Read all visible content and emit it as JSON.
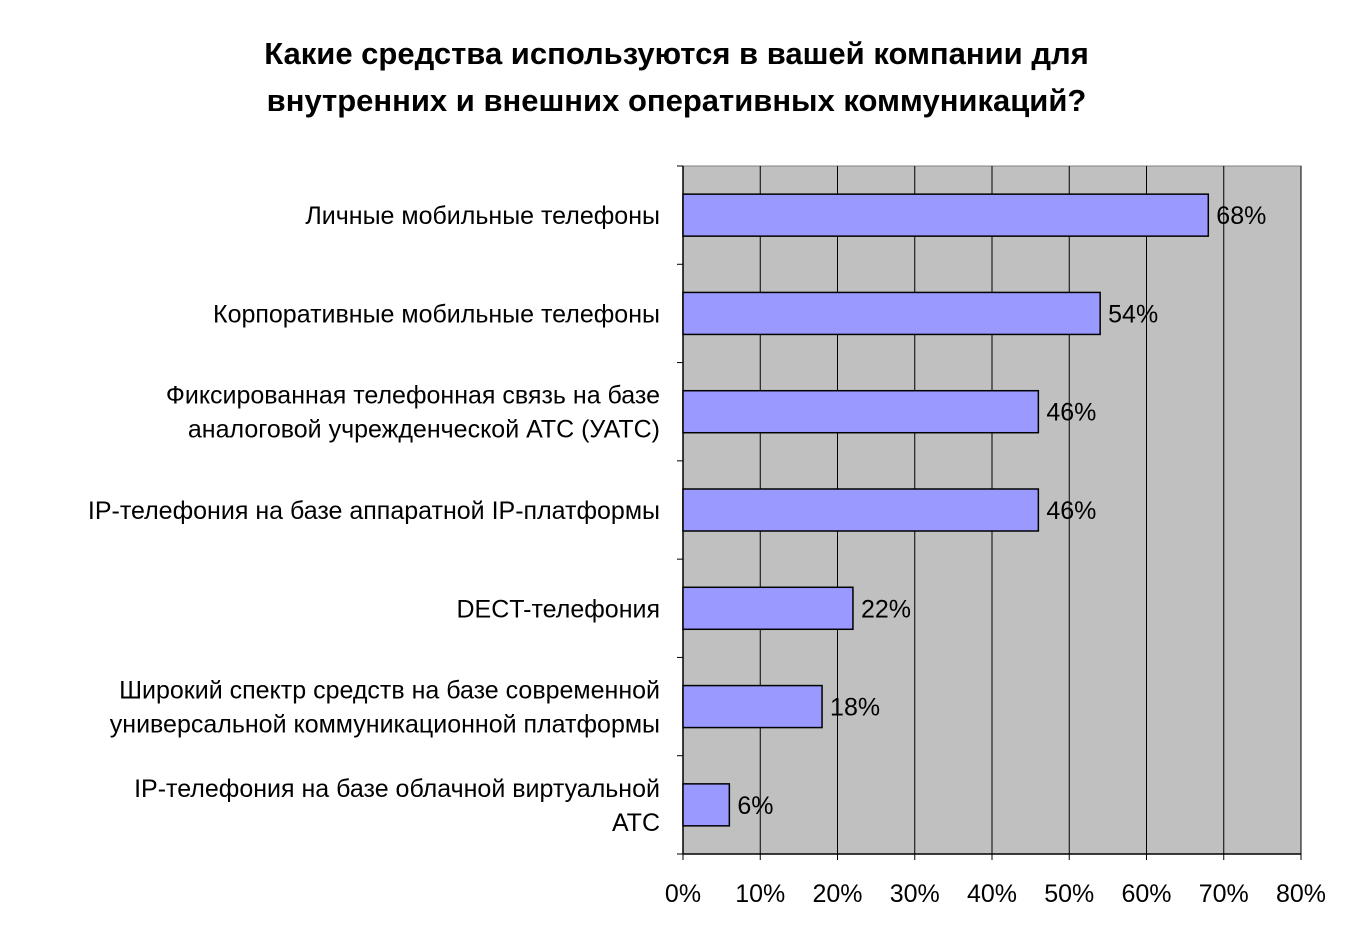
{
  "chart_data": {
    "type": "bar",
    "orientation": "horizontal",
    "title_lines": [
      "Какие средства используются в вашей компании для",
      "внутренних и внешних оперативных коммуникаций?"
    ],
    "categories": [
      [
        "Личные мобильные телефоны"
      ],
      [
        "Корпоративные мобильные телефоны"
      ],
      [
        "Фиксированная телефонная связь на базе",
        "аналоговой учрежденческой АТС (УАТС)"
      ],
      [
        "IP-телефония на базе аппаратной IP-платформы"
      ],
      [
        "DECT-телефония"
      ],
      [
        "Широкий спектр средств на базе современной",
        "универсальной коммуникационной платформы"
      ],
      [
        "IP-телефония на базе облачной виртуальной",
        "АТС"
      ]
    ],
    "values": [
      68,
      54,
      46,
      46,
      22,
      18,
      6
    ],
    "data_labels": [
      "68%",
      "54%",
      "46%",
      "46%",
      "22%",
      "18%",
      "6%"
    ],
    "x_ticks": [
      "0%",
      "10%",
      "20%",
      "30%",
      "40%",
      "50%",
      "60%",
      "70%",
      "80%"
    ],
    "xlim": [
      0,
      80
    ],
    "xlabel": "",
    "ylabel": "",
    "grid": true,
    "legend": "none",
    "colors": {
      "bar_fill": "#9999ff",
      "bar_stroke": "#000000",
      "plot_background": "#c0c0c0",
      "gridline": "#000000",
      "text": "#000000"
    }
  }
}
